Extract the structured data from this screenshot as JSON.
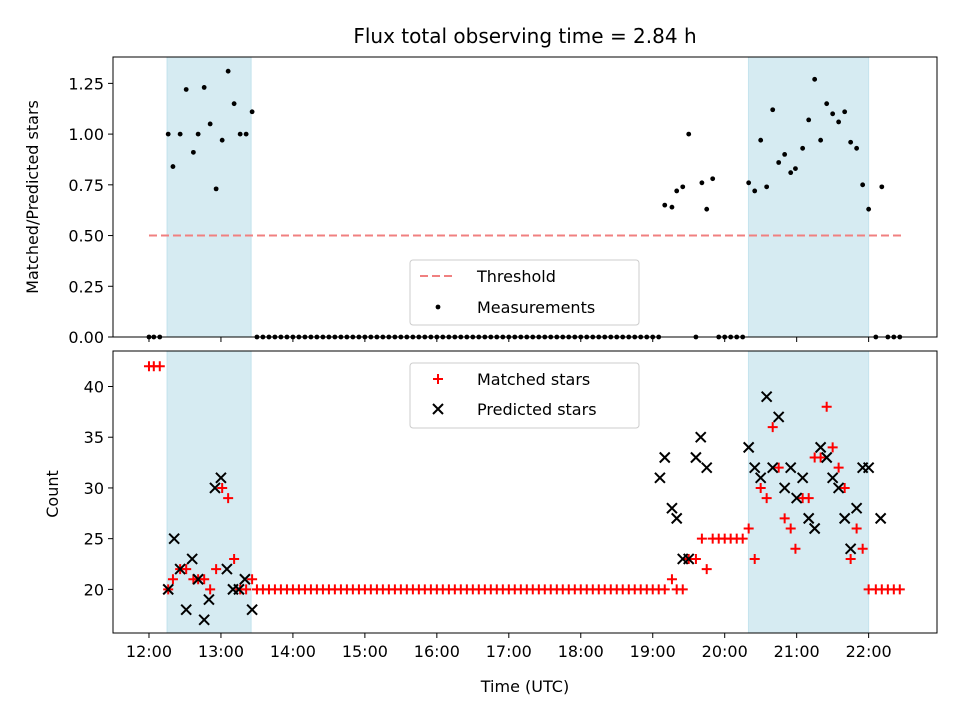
{
  "chart_data": [
    {
      "type": "scatter",
      "panel": "top",
      "title": "Flux total observing time = 2.84 h",
      "ylabel": "Matched/Predicted stars",
      "xlabel": "",
      "ylim": [
        0,
        1.38
      ],
      "yticks": [
        0.0,
        0.25,
        0.5,
        0.75,
        1.0,
        1.25
      ],
      "ytick_labels": [
        "0.00",
        "0.25",
        "0.50",
        "0.75",
        "1.00",
        "1.25"
      ],
      "shaded_intervals": [
        [
          12.25,
          13.42
        ],
        [
          20.33,
          22.0
        ]
      ],
      "threshold": {
        "name": "Threshold",
        "y": 0.5,
        "x": [
          12.0,
          22.45
        ],
        "color": "#f08080"
      },
      "legend": {
        "placement": "lower-center",
        "entries": [
          "Threshold",
          "Measurements"
        ]
      },
      "series": [
        {
          "name": "Measurements",
          "color": "#000000",
          "x": [
            12.0,
            12.067,
            12.15,
            12.267,
            12.333,
            12.433,
            12.517,
            12.617,
            12.683,
            12.767,
            12.85,
            12.933,
            13.017,
            13.1,
            13.183,
            13.267,
            13.35,
            13.433,
            13.5,
            13.583,
            13.667,
            13.75,
            13.833,
            13.917,
            14.0,
            14.083,
            14.167,
            14.25,
            14.333,
            14.417,
            14.5,
            14.583,
            14.667,
            14.75,
            14.833,
            14.917,
            15.0,
            15.083,
            15.167,
            15.25,
            15.333,
            15.417,
            15.5,
            15.583,
            15.667,
            15.75,
            15.833,
            15.917,
            16.0,
            16.083,
            16.167,
            16.25,
            16.333,
            16.417,
            16.5,
            16.583,
            16.667,
            16.75,
            16.833,
            16.917,
            17.0,
            17.083,
            17.167,
            17.25,
            17.333,
            17.417,
            17.5,
            17.583,
            17.667,
            17.75,
            17.833,
            17.917,
            18.0,
            18.083,
            18.167,
            18.25,
            18.333,
            18.417,
            18.5,
            18.583,
            18.667,
            18.75,
            18.833,
            18.917,
            19.0,
            19.083,
            19.167,
            19.267,
            19.333,
            19.417,
            19.5,
            19.6,
            19.683,
            19.75,
            19.833,
            19.917,
            20.0,
            20.083,
            20.167,
            20.25,
            20.333,
            20.417,
            20.5,
            20.583,
            20.667,
            20.75,
            20.833,
            20.917,
            20.983,
            21.083,
            21.167,
            21.25,
            21.333,
            21.417,
            21.5,
            21.583,
            21.667,
            21.75,
            21.833,
            21.917,
            22.0,
            22.1,
            22.183,
            22.267,
            22.35,
            22.433
          ],
          "y": [
            0.0,
            0.0,
            0.0,
            1.0,
            0.84,
            1.0,
            1.22,
            0.91,
            1.0,
            1.23,
            1.05,
            0.73,
            0.97,
            1.31,
            1.15,
            1.0,
            1.0,
            1.11,
            0.0,
            0.0,
            0.0,
            0.0,
            0.0,
            0.0,
            0.0,
            0.0,
            0.0,
            0.0,
            0.0,
            0.0,
            0.0,
            0.0,
            0.0,
            0.0,
            0.0,
            0.0,
            0.0,
            0.0,
            0.0,
            0.0,
            0.0,
            0.0,
            0.0,
            0.0,
            0.0,
            0.0,
            0.0,
            0.0,
            0.0,
            0.0,
            0.0,
            0.0,
            0.0,
            0.0,
            0.0,
            0.0,
            0.0,
            0.0,
            0.0,
            0.0,
            0.0,
            0.0,
            0.0,
            0.0,
            0.0,
            0.0,
            0.0,
            0.0,
            0.0,
            0.0,
            0.0,
            0.0,
            0.0,
            0.0,
            0.0,
            0.0,
            0.0,
            0.0,
            0.0,
            0.0,
            0.0,
            0.0,
            0.0,
            0.0,
            0.0,
            0.0,
            0.65,
            0.64,
            0.72,
            0.74,
            1.0,
            0.0,
            0.76,
            0.63,
            0.78,
            0.0,
            0.0,
            0.0,
            0.0,
            0.0,
            0.76,
            0.72,
            0.97,
            0.74,
            1.12,
            0.86,
            0.9,
            0.81,
            0.83,
            0.93,
            1.07,
            1.27,
            0.97,
            1.15,
            1.1,
            1.06,
            1.11,
            0.96,
            0.93,
            0.75,
            0.63,
            0.0,
            0.74,
            0.0,
            0.0,
            0.0
          ]
        }
      ]
    },
    {
      "type": "scatter",
      "panel": "bottom",
      "xlabel": "Time (UTC)",
      "ylabel": "Count",
      "xlim": [
        11.5,
        22.95
      ],
      "ylim": [
        15.7,
        43.5
      ],
      "yticks": [
        20,
        25,
        30,
        35,
        40
      ],
      "ytick_labels": [
        "20",
        "25",
        "30",
        "35",
        "40"
      ],
      "xticks": [
        12,
        13,
        14,
        15,
        16,
        17,
        18,
        19,
        20,
        21,
        22
      ],
      "xtick_labels": [
        "12:00",
        "13:00",
        "14:00",
        "15:00",
        "16:00",
        "17:00",
        "18:00",
        "19:00",
        "20:00",
        "21:00",
        "22:00"
      ],
      "shaded_intervals": [
        [
          12.25,
          13.42
        ],
        [
          20.33,
          22.0
        ]
      ],
      "legend": {
        "placement": "upper-center",
        "entries": [
          "Matched stars",
          "Predicted stars"
        ]
      },
      "series": [
        {
          "name": "Matched stars",
          "marker": "plus",
          "color": "#ff0000",
          "x": [
            12.0,
            12.067,
            12.15,
            12.267,
            12.333,
            12.433,
            12.517,
            12.617,
            12.683,
            12.767,
            12.85,
            12.933,
            13.017,
            13.1,
            13.183,
            13.267,
            13.35,
            13.433,
            13.5,
            13.583,
            13.667,
            13.75,
            13.833,
            13.917,
            14.0,
            14.083,
            14.167,
            14.25,
            14.333,
            14.417,
            14.5,
            14.583,
            14.667,
            14.75,
            14.833,
            14.917,
            15.0,
            15.083,
            15.167,
            15.25,
            15.333,
            15.417,
            15.5,
            15.583,
            15.667,
            15.75,
            15.833,
            15.917,
            16.0,
            16.083,
            16.167,
            16.25,
            16.333,
            16.417,
            16.5,
            16.583,
            16.667,
            16.75,
            16.833,
            16.917,
            17.0,
            17.083,
            17.167,
            17.25,
            17.333,
            17.417,
            17.5,
            17.583,
            17.667,
            17.75,
            17.833,
            17.917,
            18.0,
            18.083,
            18.167,
            18.25,
            18.333,
            18.417,
            18.5,
            18.583,
            18.667,
            18.75,
            18.833,
            18.917,
            19.0,
            19.083,
            19.167,
            19.267,
            19.333,
            19.417,
            19.5,
            19.6,
            19.683,
            19.75,
            19.833,
            19.917,
            20.0,
            20.083,
            20.167,
            20.25,
            20.333,
            20.417,
            20.5,
            20.583,
            20.667,
            20.75,
            20.833,
            20.917,
            20.983,
            21.083,
            21.167,
            21.25,
            21.333,
            21.417,
            21.5,
            21.583,
            21.667,
            21.75,
            21.833,
            21.917,
            22.0,
            22.1,
            22.183,
            22.267,
            22.35,
            22.433
          ],
          "y": [
            42,
            42,
            42,
            20,
            21,
            22,
            22,
            21,
            21,
            21,
            20,
            22,
            30,
            29,
            23,
            20,
            20,
            21,
            20,
            20,
            20,
            20,
            20,
            20,
            20,
            20,
            20,
            20,
            20,
            20,
            20,
            20,
            20,
            20,
            20,
            20,
            20,
            20,
            20,
            20,
            20,
            20,
            20,
            20,
            20,
            20,
            20,
            20,
            20,
            20,
            20,
            20,
            20,
            20,
            20,
            20,
            20,
            20,
            20,
            20,
            20,
            20,
            20,
            20,
            20,
            20,
            20,
            20,
            20,
            20,
            20,
            20,
            20,
            20,
            20,
            20,
            20,
            20,
            20,
            20,
            20,
            20,
            20,
            20,
            20,
            20,
            20,
            21,
            20,
            20,
            23,
            23,
            25,
            22,
            25,
            25,
            25,
            25,
            25,
            25,
            26,
            23,
            30,
            29,
            36,
            32,
            27,
            26,
            24,
            29,
            29,
            33,
            33,
            38,
            34,
            32,
            30,
            23,
            26,
            24,
            20,
            20,
            20,
            20,
            20,
            20
          ]
        },
        {
          "name": "Predicted stars",
          "marker": "x",
          "color": "#000000",
          "x": [
            12.267,
            12.35,
            12.433,
            12.517,
            12.6,
            12.683,
            12.767,
            12.833,
            12.917,
            13.0,
            13.083,
            13.167,
            13.25,
            13.333,
            13.433,
            19.1,
            19.167,
            19.267,
            19.333,
            19.417,
            19.5,
            19.6,
            19.667,
            19.75,
            20.333,
            20.417,
            20.5,
            20.583,
            20.667,
            20.75,
            20.833,
            20.917,
            21.0,
            21.083,
            21.167,
            21.25,
            21.333,
            21.417,
            21.5,
            21.583,
            21.667,
            21.75,
            21.833,
            21.917,
            22.0,
            22.167
          ],
          "y": [
            20,
            25,
            22,
            18,
            23,
            21,
            17,
            19,
            30,
            31,
            22,
            20,
            20,
            21,
            18,
            31,
            33,
            28,
            27,
            23,
            23,
            33,
            35,
            32,
            34,
            32,
            31,
            39,
            32,
            37,
            30,
            32,
            29,
            31,
            27,
            26,
            34,
            33,
            31,
            30,
            27,
            24,
            28,
            32,
            32,
            27
          ]
        }
      ]
    }
  ]
}
